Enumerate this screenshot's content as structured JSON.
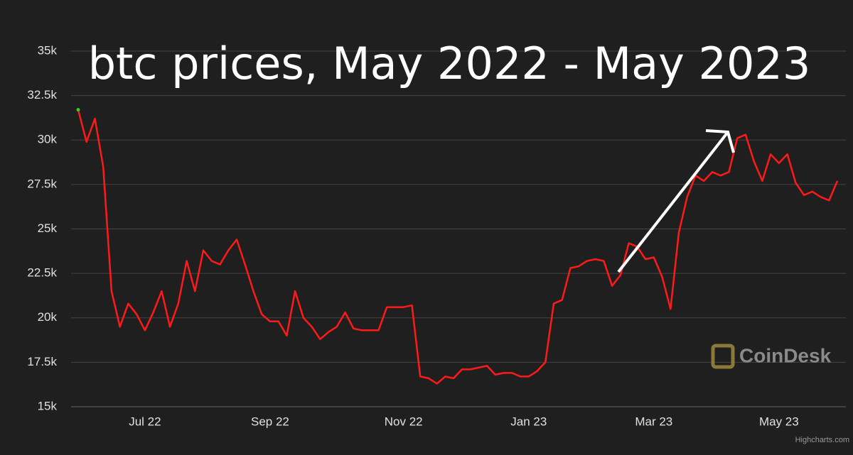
{
  "chart_data": {
    "type": "line",
    "title": "btc prices, May 2022 - May 2023",
    "watermark": "CoinDesk",
    "credit": "Highcharts.com",
    "categories": [
      null,
      null,
      null,
      null,
      null,
      null,
      null,
      null,
      "Jul 22",
      null,
      null,
      null,
      null,
      null,
      null,
      null,
      null,
      null,
      null,
      null,
      null,
      null,
      null,
      "Sep 22",
      null,
      null,
      null,
      null,
      null,
      null,
      null,
      null,
      null,
      null,
      null,
      null,
      null,
      null,
      null,
      "Nov 22",
      null,
      null,
      null,
      null,
      null,
      null,
      null,
      null,
      null,
      null,
      null,
      null,
      null,
      null,
      "Jan 23",
      null,
      null,
      null,
      null,
      null,
      null,
      null,
      null,
      null,
      null,
      null,
      null,
      null,
      null,
      "Mar 23",
      null,
      null,
      null,
      null,
      null,
      null,
      null,
      null,
      null,
      null,
      null,
      null,
      null,
      null,
      "May 23",
      null,
      null,
      null,
      null,
      null,
      null,
      null
    ],
    "series": [
      {
        "name": "BTC",
        "color": "#ff1a1a",
        "values": [
          31700,
          29900,
          31200,
          28500,
          21500,
          19500,
          20800,
          20200,
          19300,
          20300,
          21500,
          19500,
          20800,
          23200,
          21500,
          23800,
          23200,
          23000,
          23800,
          24400,
          23000,
          21500,
          20200,
          19800,
          19800,
          19000,
          21500,
          20000,
          19500,
          18800,
          19200,
          19500,
          20300,
          19400,
          19300,
          19300,
          19300,
          20600,
          20600,
          20600,
          20700,
          16700,
          16600,
          16300,
          16700,
          16600,
          17100,
          17100,
          17200,
          17300,
          16800,
          16900,
          16900,
          16700,
          16700,
          17000,
          17500,
          20800,
          21000,
          22800,
          22900,
          23200,
          23300,
          23200,
          21800,
          22400,
          24200,
          24000,
          23300,
          23400,
          22300,
          20500,
          24800,
          26800,
          28000,
          27700,
          28200,
          28000,
          28200,
          30100,
          30300,
          28800,
          27700,
          29200,
          28700,
          29200,
          27600,
          26900,
          27100,
          26800,
          26600,
          27700
        ]
      }
    ],
    "ylim": [
      15000,
      35000
    ],
    "yticks": [
      {
        "value": 15000,
        "label": "15k"
      },
      {
        "value": 17500,
        "label": "17.5k"
      },
      {
        "value": 20000,
        "label": "20k"
      },
      {
        "value": 22500,
        "label": "22.5k"
      },
      {
        "value": 25000,
        "label": "25k"
      },
      {
        "value": 27500,
        "label": "27.5k"
      },
      {
        "value": 30000,
        "label": "30k"
      },
      {
        "value": 32500,
        "label": "32.5k"
      },
      {
        "value": 35000,
        "label": "35k"
      }
    ],
    "grid": true
  }
}
